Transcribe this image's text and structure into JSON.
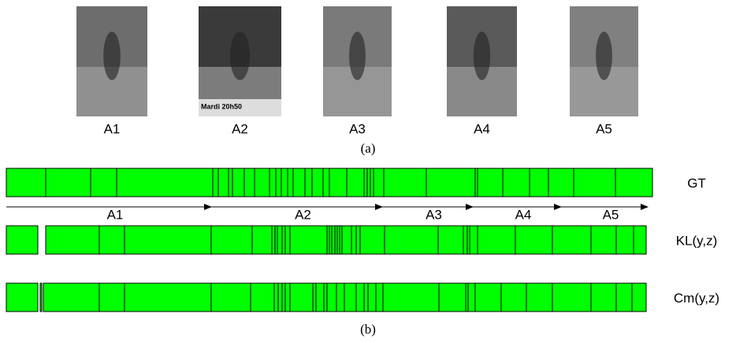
{
  "figure": {
    "thumbnails": [
      "A1",
      "A2",
      "A3",
      "A4",
      "A5"
    ],
    "overlay_text": "Mardi 20h50",
    "caption_a": "(a)",
    "phases": [
      "A1",
      "A2",
      "A3",
      "A4",
      "A5"
    ],
    "rows": [
      "GT",
      "KL(y,z)",
      "Cm(y,z)"
    ],
    "caption_b": "(b)"
  }
}
